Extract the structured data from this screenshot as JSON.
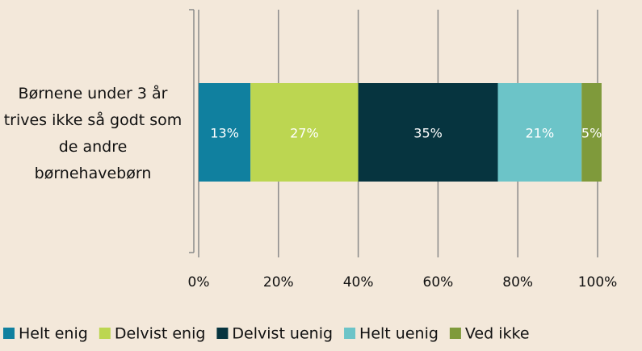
{
  "chart_data": {
    "type": "stacked-bar-horizontal",
    "categories": [
      "Børnene under 3 år trives ikke så godt som de andre børnehavebørn"
    ],
    "series": [
      {
        "name": "Helt enig",
        "color": "#10809f",
        "values": [
          13
        ],
        "value_labels": [
          "13%"
        ]
      },
      {
        "name": "Delvist enig",
        "color": "#bcd651",
        "values": [
          27
        ],
        "value_labels": [
          "27%"
        ]
      },
      {
        "name": "Delvist uenig",
        "color": "#06343f",
        "values": [
          35
        ],
        "value_labels": [
          "35%"
        ]
      },
      {
        "name": "Helt uenig",
        "color": "#6cc4c8",
        "values": [
          21
        ],
        "value_labels": [
          "21%"
        ]
      },
      {
        "name": "Ved ikke",
        "color": "#7f9a3b",
        "values": [
          5
        ],
        "value_labels": [
          "5%"
        ]
      }
    ],
    "xlim": [
      0,
      100
    ],
    "xticks": [
      {
        "value": 0,
        "label": "0%"
      },
      {
        "value": 20,
        "label": "20%"
      },
      {
        "value": 40,
        "label": "40%"
      },
      {
        "value": 60,
        "label": "60%"
      },
      {
        "value": 80,
        "label": "80%"
      },
      {
        "value": 100,
        "label": "100%"
      }
    ],
    "grid": true,
    "legend": "bottom"
  }
}
